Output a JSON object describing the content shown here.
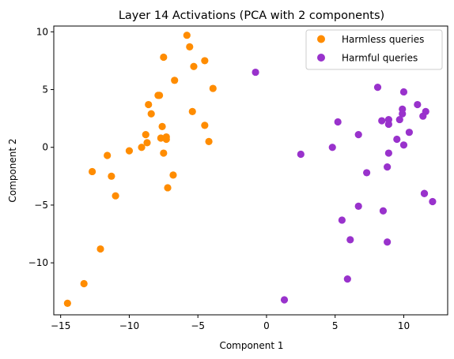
{
  "chart_data": {
    "type": "scatter",
    "title": "Layer 14 Activations (PCA with 2 components)",
    "xlabel": "Component 1",
    "ylabel": "Component 2",
    "xlim": [
      -15.5,
      13.2
    ],
    "ylim": [
      -14.5,
      10.5
    ],
    "xticks": [
      -15,
      -10,
      -5,
      0,
      5,
      10
    ],
    "yticks": [
      -10,
      -5,
      0,
      5,
      10
    ],
    "xtick_labels": [
      "−15",
      "−10",
      "−5",
      "0",
      "5",
      "10"
    ],
    "ytick_labels": [
      "−10",
      "−5",
      "0",
      "5",
      "10"
    ],
    "grid": false,
    "legend_position": "top-right",
    "series": [
      {
        "name": "Harmless queries",
        "color": "#ff8c00",
        "points": [
          [
            -5.8,
            9.7
          ],
          [
            -5.6,
            8.7
          ],
          [
            -7.5,
            7.8
          ],
          [
            -4.5,
            7.5
          ],
          [
            -5.3,
            7.0
          ],
          [
            -6.7,
            5.8
          ],
          [
            -3.9,
            5.1
          ],
          [
            -7.9,
            4.5
          ],
          [
            -7.8,
            4.5
          ],
          [
            -8.6,
            3.7
          ],
          [
            -8.4,
            2.9
          ],
          [
            -5.4,
            3.1
          ],
          [
            -4.5,
            1.9
          ],
          [
            -7.6,
            1.8
          ],
          [
            -8.8,
            1.1
          ],
          [
            -7.7,
            0.8
          ],
          [
            -7.3,
            0.9
          ],
          [
            -7.3,
            0.7
          ],
          [
            -8.7,
            0.4
          ],
          [
            -4.2,
            0.5
          ],
          [
            -9.1,
            0.0
          ],
          [
            -10.0,
            -0.3
          ],
          [
            -7.5,
            -0.5
          ],
          [
            -11.6,
            -0.7
          ],
          [
            -12.7,
            -2.1
          ],
          [
            -11.3,
            -2.5
          ],
          [
            -6.8,
            -2.4
          ],
          [
            -7.2,
            -3.5
          ],
          [
            -11.0,
            -4.2
          ],
          [
            -12.1,
            -8.8
          ],
          [
            -13.3,
            -11.8
          ],
          [
            -14.5,
            -13.5
          ]
        ]
      },
      {
        "name": "Harmful queries",
        "color": "#9932cc",
        "points": [
          [
            -0.8,
            6.5
          ],
          [
            8.1,
            5.2
          ],
          [
            10.0,
            4.8
          ],
          [
            11.0,
            3.7
          ],
          [
            9.9,
            3.3
          ],
          [
            11.6,
            3.1
          ],
          [
            11.4,
            2.7
          ],
          [
            9.9,
            2.9
          ],
          [
            8.9,
            2.4
          ],
          [
            9.7,
            2.4
          ],
          [
            8.4,
            2.3
          ],
          [
            5.2,
            2.2
          ],
          [
            8.9,
            2.0
          ],
          [
            10.4,
            1.3
          ],
          [
            6.7,
            1.1
          ],
          [
            9.5,
            0.7
          ],
          [
            10.0,
            0.2
          ],
          [
            4.8,
            0.0
          ],
          [
            2.5,
            -0.6
          ],
          [
            8.9,
            -0.5
          ],
          [
            8.8,
            -1.7
          ],
          [
            7.3,
            -2.2
          ],
          [
            11.5,
            -4.0
          ],
          [
            11.5,
            -4.0
          ],
          [
            12.1,
            -4.7
          ],
          [
            6.7,
            -5.1
          ],
          [
            8.5,
            -5.5
          ],
          [
            5.5,
            -6.3
          ],
          [
            6.1,
            -8.0
          ],
          [
            8.8,
            -8.2
          ],
          [
            5.9,
            -11.4
          ],
          [
            1.3,
            -13.2
          ]
        ]
      }
    ]
  }
}
